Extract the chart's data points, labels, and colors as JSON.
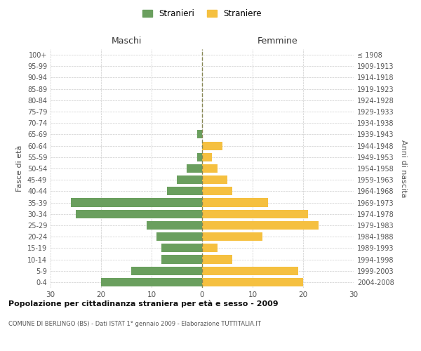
{
  "age_groups": [
    "0-4",
    "5-9",
    "10-14",
    "15-19",
    "20-24",
    "25-29",
    "30-34",
    "35-39",
    "40-44",
    "45-49",
    "50-54",
    "55-59",
    "60-64",
    "65-69",
    "70-74",
    "75-79",
    "80-84",
    "85-89",
    "90-94",
    "95-99",
    "100+"
  ],
  "birth_years": [
    "2004-2008",
    "1999-2003",
    "1994-1998",
    "1989-1993",
    "1984-1988",
    "1979-1983",
    "1974-1978",
    "1969-1973",
    "1964-1968",
    "1959-1963",
    "1954-1958",
    "1949-1953",
    "1944-1948",
    "1939-1943",
    "1934-1938",
    "1929-1933",
    "1924-1928",
    "1919-1923",
    "1914-1918",
    "1909-1913",
    "≤ 1908"
  ],
  "maschi": [
    20,
    14,
    8,
    8,
    9,
    11,
    25,
    26,
    7,
    5,
    3,
    1,
    0,
    1,
    0,
    0,
    0,
    0,
    0,
    0,
    0
  ],
  "femmine": [
    20,
    19,
    6,
    3,
    12,
    23,
    21,
    13,
    6,
    5,
    3,
    2,
    4,
    0,
    0,
    0,
    0,
    0,
    0,
    0,
    0
  ],
  "color_maschi": "#6a9f5e",
  "color_femmine": "#f5c040",
  "title": "Popolazione per cittadinanza straniera per età e sesso - 2009",
  "subtitle": "COMUNE DI BERLINGO (BS) - Dati ISTAT 1° gennaio 2009 - Elaborazione TUTTITALIA.IT",
  "xlabel_left": "Maschi",
  "xlabel_right": "Femmine",
  "ylabel_left": "Fasce di età",
  "ylabel_right": "Anni di nascita",
  "xlim": 30,
  "legend_stranieri": "Stranieri",
  "legend_straniere": "Straniere",
  "background_color": "#ffffff",
  "grid_color": "#cccccc"
}
